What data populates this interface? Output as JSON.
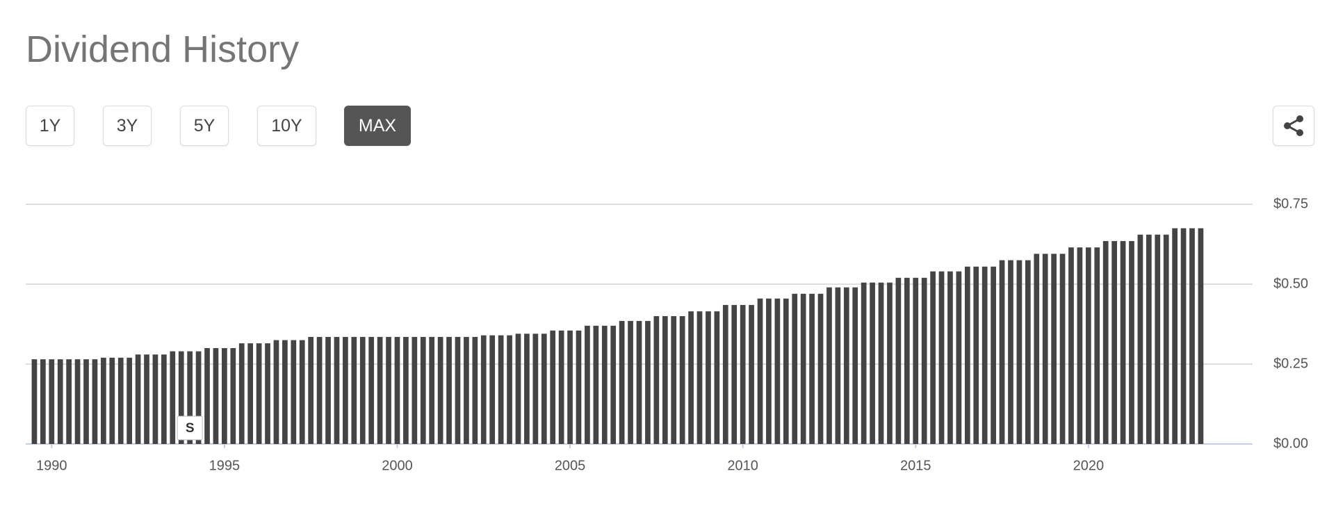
{
  "header": {
    "title": "Dividend History",
    "ranges": [
      "1Y",
      "3Y",
      "5Y",
      "10Y",
      "MAX"
    ]
  },
  "chart_data": {
    "type": "bar",
    "color": "#444444",
    "grid": true,
    "x": [
      1989.5,
      1989.75,
      1990,
      1990.25,
      1990.5,
      1990.75,
      1991,
      1991.25,
      1991.5,
      1991.75,
      1992,
      1992.25,
      1992.5,
      1992.75,
      1993,
      1993.25,
      1993.5,
      1993.75,
      1994,
      1994.25,
      1994.5,
      1994.75,
      1995,
      1995.25,
      1995.5,
      1995.75,
      1996,
      1996.25,
      1996.5,
      1996.75,
      1997,
      1997.25,
      1997.5,
      1997.75,
      1998,
      1998.25,
      1998.5,
      1998.75,
      1999,
      1999.25,
      1999.5,
      1999.75,
      2000,
      2000.25,
      2000.5,
      2000.75,
      2001,
      2001.25,
      2001.5,
      2001.75,
      2002,
      2002.25,
      2002.5,
      2002.75,
      2003,
      2003.25,
      2003.5,
      2003.75,
      2004,
      2004.25,
      2004.5,
      2004.75,
      2005,
      2005.25,
      2005.5,
      2005.75,
      2006,
      2006.25,
      2006.5,
      2006.75,
      2007,
      2007.25,
      2007.5,
      2007.75,
      2008,
      2008.25,
      2008.5,
      2008.75,
      2009,
      2009.25,
      2009.5,
      2009.75,
      2010,
      2010.25,
      2010.5,
      2010.75,
      2011,
      2011.25,
      2011.5,
      2011.75,
      2012,
      2012.25,
      2012.5,
      2012.75,
      2013,
      2013.25,
      2013.5,
      2013.75,
      2014,
      2014.25,
      2014.5,
      2014.75,
      2015,
      2015.25,
      2015.5,
      2015.75,
      2016,
      2016.25,
      2016.5,
      2016.75,
      2017,
      2017.25,
      2017.5,
      2017.75,
      2018,
      2018.25,
      2018.5,
      2018.75,
      2019,
      2019.25,
      2019.5,
      2019.75,
      2020,
      2020.25,
      2020.5,
      2020.75,
      2021,
      2021.25,
      2021.5,
      2021.75,
      2022,
      2022.25,
      2022.5,
      2022.75,
      2023,
      2023.25
    ],
    "values": [
      0.265,
      0.265,
      0.265,
      0.265,
      0.265,
      0.265,
      0.265,
      0.265,
      0.27,
      0.27,
      0.27,
      0.27,
      0.28,
      0.28,
      0.28,
      0.28,
      0.29,
      0.29,
      0.29,
      0.29,
      0.3,
      0.3,
      0.3,
      0.3,
      0.315,
      0.315,
      0.315,
      0.315,
      0.325,
      0.325,
      0.325,
      0.325,
      0.335,
      0.335,
      0.335,
      0.335,
      0.335,
      0.335,
      0.335,
      0.335,
      0.335,
      0.335,
      0.335,
      0.335,
      0.335,
      0.335,
      0.335,
      0.335,
      0.335,
      0.335,
      0.335,
      0.335,
      0.34,
      0.34,
      0.34,
      0.34,
      0.345,
      0.345,
      0.345,
      0.345,
      0.355,
      0.355,
      0.355,
      0.355,
      0.37,
      0.37,
      0.37,
      0.37,
      0.385,
      0.385,
      0.385,
      0.385,
      0.4,
      0.4,
      0.4,
      0.4,
      0.415,
      0.415,
      0.415,
      0.415,
      0.435,
      0.435,
      0.435,
      0.435,
      0.455,
      0.455,
      0.455,
      0.455,
      0.47,
      0.47,
      0.47,
      0.47,
      0.49,
      0.49,
      0.49,
      0.49,
      0.505,
      0.505,
      0.505,
      0.505,
      0.52,
      0.52,
      0.52,
      0.52,
      0.54,
      0.54,
      0.54,
      0.54,
      0.555,
      0.555,
      0.555,
      0.555,
      0.575,
      0.575,
      0.575,
      0.575,
      0.595,
      0.595,
      0.595,
      0.595,
      0.615,
      0.615,
      0.615,
      0.615,
      0.635,
      0.635,
      0.635,
      0.635,
      0.655,
      0.655,
      0.655,
      0.655,
      0.675,
      0.675,
      0.675,
      0.675
    ],
    "xlim": [
      1989.25,
      2024.75
    ],
    "xticks": [
      1990,
      1995,
      2000,
      2005,
      2010,
      2015,
      2020
    ],
    "ylim": [
      0,
      0.75
    ],
    "yticks": [
      {
        "value": 0,
        "label": "$0.00"
      },
      {
        "value": 0.25,
        "label": "$0.25"
      },
      {
        "value": 0.5,
        "label": "$0.50"
      },
      {
        "value": 0.75,
        "label": "$0.75"
      }
    ],
    "annotations": [
      {
        "text": "S",
        "x": 1994
      }
    ]
  }
}
